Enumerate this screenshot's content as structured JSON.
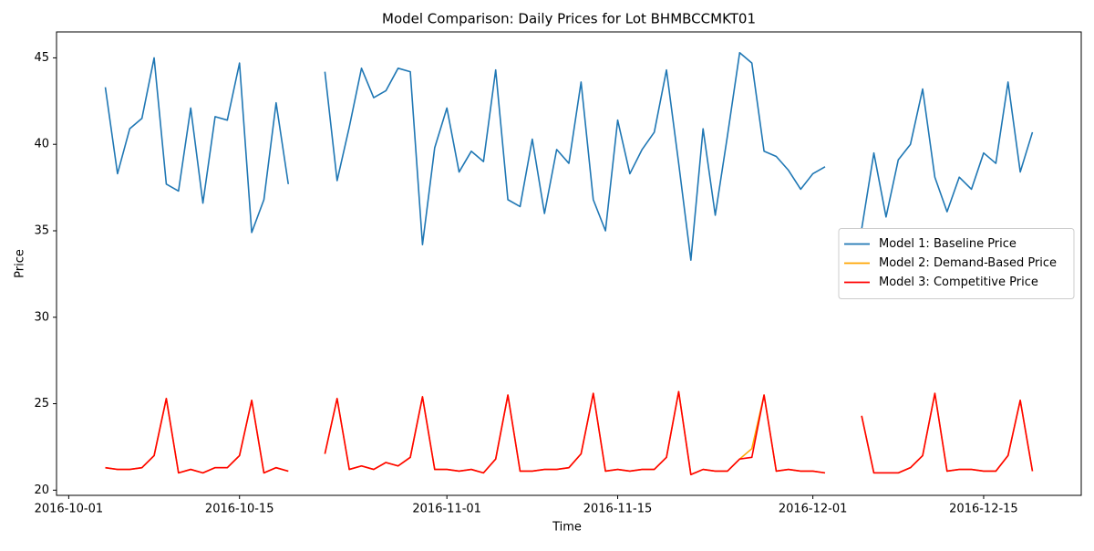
{
  "chart_data": {
    "type": "line",
    "title": "Model Comparison: Daily Prices for Lot BHMBCCMKT01",
    "xlabel": "Time",
    "ylabel": "Price",
    "x": [
      "2016-10-04",
      "2016-10-05",
      "2016-10-06",
      "2016-10-07",
      "2016-10-08",
      "2016-10-09",
      "2016-10-10",
      "2016-10-11",
      "2016-10-12",
      "2016-10-13",
      "2016-10-14",
      "2016-10-15",
      "2016-10-16",
      "2016-10-17",
      "2016-10-18",
      "2016-10-19",
      "2016-10-20",
      "2016-10-21",
      "2016-10-22",
      "2016-10-23",
      "2016-10-24",
      "2016-10-25",
      "2016-10-26",
      "2016-10-27",
      "2016-10-28",
      "2016-10-29",
      "2016-10-30",
      "2016-10-31",
      "2016-11-01",
      "2016-11-02",
      "2016-11-03",
      "2016-11-04",
      "2016-11-05",
      "2016-11-06",
      "2016-11-07",
      "2016-11-08",
      "2016-11-09",
      "2016-11-10",
      "2016-11-11",
      "2016-11-12",
      "2016-11-13",
      "2016-11-14",
      "2016-11-15",
      "2016-11-16",
      "2016-11-17",
      "2016-11-18",
      "2016-11-19",
      "2016-11-20",
      "2016-11-21",
      "2016-11-22",
      "2016-11-23",
      "2016-11-24",
      "2016-11-25",
      "2016-11-26",
      "2016-11-27",
      "2016-11-28",
      "2016-11-29",
      "2016-11-30",
      "2016-12-01",
      "2016-12-02",
      "2016-12-03",
      "2016-12-04",
      "2016-12-05",
      "2016-12-06",
      "2016-12-07",
      "2016-12-08",
      "2016-12-09",
      "2016-12-10",
      "2016-12-11",
      "2016-12-12",
      "2016-12-13",
      "2016-12-14",
      "2016-12-15",
      "2016-12-16",
      "2016-12-17",
      "2016-12-18",
      "2016-12-19"
    ],
    "series": [
      {
        "name": "Model 1: Baseline Price",
        "color": "#1f77b4",
        "values": [
          43.3,
          38.3,
          40.9,
          41.5,
          45.0,
          37.7,
          37.3,
          42.1,
          36.6,
          41.6,
          41.4,
          44.7,
          34.9,
          36.8,
          42.4,
          37.7,
          null,
          null,
          44.2,
          37.9,
          41.0,
          44.4,
          42.7,
          43.1,
          44.4,
          44.2,
          34.2,
          39.8,
          42.1,
          38.4,
          39.6,
          39.0,
          44.3,
          36.8,
          36.4,
          40.3,
          36.0,
          39.7,
          38.9,
          43.6,
          36.8,
          35.0,
          41.4,
          38.3,
          39.7,
          40.7,
          44.3,
          38.9,
          33.3,
          40.9,
          35.9,
          40.5,
          45.3,
          44.7,
          39.6,
          39.3,
          38.5,
          37.4,
          38.3,
          38.7,
          null,
          null,
          35.1,
          39.5,
          35.8,
          39.1,
          40.0,
          43.2,
          38.1,
          36.1,
          38.1,
          37.4,
          39.5,
          38.9,
          43.6,
          38.4,
          40.7
        ]
      },
      {
        "name": "Model 2: Demand-Based Price",
        "color": "#ffa500",
        "values": [
          21.3,
          21.2,
          21.2,
          21.3,
          22.0,
          25.3,
          21.0,
          21.2,
          21.0,
          21.3,
          21.3,
          22.0,
          25.2,
          21.0,
          21.3,
          21.1,
          null,
          null,
          22.1,
          25.3,
          21.2,
          21.4,
          21.2,
          21.6,
          21.4,
          21.9,
          25.4,
          21.2,
          21.2,
          21.1,
          21.2,
          21.0,
          21.8,
          25.5,
          21.1,
          21.1,
          21.2,
          21.2,
          21.3,
          22.1,
          25.6,
          21.1,
          21.2,
          21.1,
          21.2,
          21.2,
          21.9,
          25.7,
          20.9,
          21.2,
          21.1,
          21.1,
          21.8,
          22.4,
          25.5,
          21.1,
          21.2,
          21.1,
          21.1,
          21.0,
          null,
          null,
          24.3,
          21.0,
          21.0,
          21.0,
          21.3,
          22.0,
          25.6,
          21.1,
          21.2,
          21.2,
          21.1,
          21.1,
          22.0,
          25.2,
          21.1
        ]
      },
      {
        "name": "Model 3: Competitive Price",
        "color": "#ff0000",
        "values": [
          21.3,
          21.2,
          21.2,
          21.3,
          22.0,
          25.3,
          21.0,
          21.2,
          21.0,
          21.3,
          21.3,
          22.0,
          25.2,
          21.0,
          21.3,
          21.1,
          null,
          null,
          22.1,
          25.3,
          21.2,
          21.4,
          21.2,
          21.6,
          21.4,
          21.9,
          25.4,
          21.2,
          21.2,
          21.1,
          21.2,
          21.0,
          21.8,
          25.5,
          21.1,
          21.1,
          21.2,
          21.2,
          21.3,
          22.1,
          25.6,
          21.1,
          21.2,
          21.1,
          21.2,
          21.2,
          21.9,
          25.7,
          20.9,
          21.2,
          21.1,
          21.1,
          21.8,
          21.9,
          25.5,
          21.1,
          21.2,
          21.1,
          21.1,
          21.0,
          null,
          null,
          24.3,
          21.0,
          21.0,
          21.0,
          21.3,
          22.0,
          25.6,
          21.1,
          21.2,
          21.2,
          21.1,
          21.1,
          22.0,
          25.2,
          21.1
        ]
      }
    ],
    "xlim": [
      "2016-09-30",
      "2016-12-23"
    ],
    "xticks": [
      "2016-10-01",
      "2016-10-15",
      "2016-11-01",
      "2016-11-15",
      "2016-12-01",
      "2016-12-15"
    ],
    "ylim": [
      19.7,
      46.5
    ],
    "yticks": [
      20,
      25,
      30,
      35,
      40,
      45
    ],
    "grid": false,
    "legend": "center right"
  }
}
